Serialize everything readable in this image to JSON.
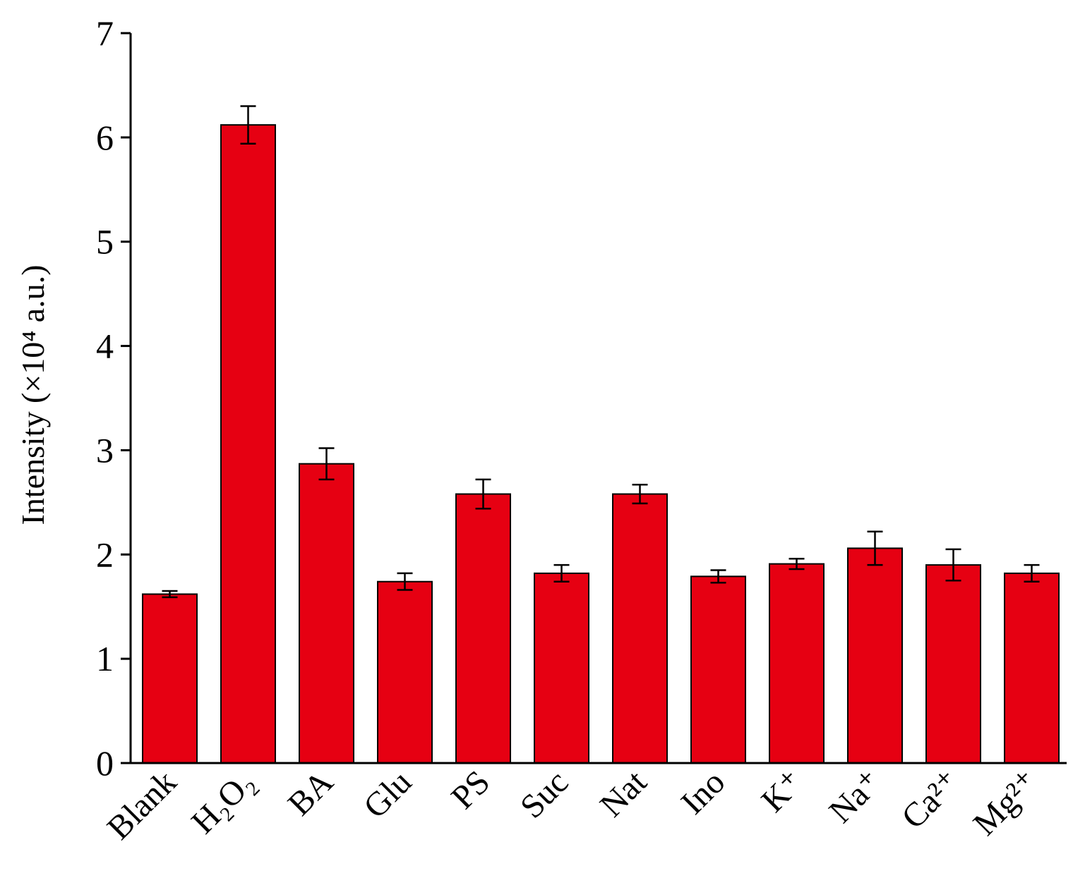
{
  "chart_data": {
    "type": "bar",
    "y_label": "Intensity (×10⁴ a.u.)",
    "categories": [
      "Blank",
      "H₂O₂",
      "BA",
      "Glu",
      "PS",
      "Suc",
      "Nat",
      "Ino",
      "K⁺",
      "Na⁺",
      "Ca²⁺",
      "Mg²⁺"
    ],
    "values": [
      1.62,
      6.12,
      2.87,
      1.74,
      2.58,
      1.82,
      2.58,
      1.79,
      1.91,
      2.06,
      1.9,
      1.82
    ],
    "errors": [
      0.03,
      0.18,
      0.15,
      0.08,
      0.14,
      0.08,
      0.09,
      0.06,
      0.05,
      0.16,
      0.15,
      0.08
    ],
    "color": "#e60012",
    "ylim": [
      0,
      7
    ],
    "yticks": [
      0,
      1,
      2,
      3,
      4,
      5,
      6,
      7
    ]
  }
}
